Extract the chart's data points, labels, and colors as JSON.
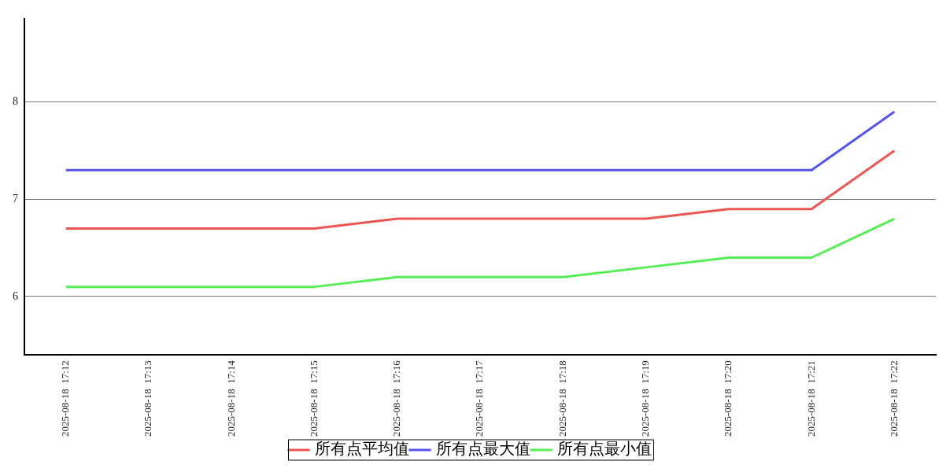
{
  "chart_data": {
    "type": "line",
    "categories": [
      "2025-08-18  17:12",
      "2025-08-18  17:13",
      "2025-08-18  17:14",
      "2025-08-18  17:15",
      "2025-08-18  17:16",
      "2025-08-18  17:17",
      "2025-08-18  17:18",
      "2025-08-18  17:19",
      "2025-08-18  17:20",
      "2025-08-18  17:21",
      "2025-08-18  17:22"
    ],
    "series": [
      {
        "name": "所有点平均值",
        "color": "#ee5555",
        "values": [
          6.7,
          6.7,
          6.7,
          6.7,
          6.8,
          6.8,
          6.8,
          6.8,
          6.9,
          6.9,
          7.5
        ]
      },
      {
        "name": "所有点最大值",
        "color": "#5555ee",
        "values": [
          7.3,
          7.3,
          7.3,
          7.3,
          7.3,
          7.3,
          7.3,
          7.3,
          7.3,
          7.3,
          7.9
        ]
      },
      {
        "name": "所有点最小值",
        "color": "#55ee55",
        "values": [
          6.1,
          6.1,
          6.1,
          6.1,
          6.2,
          6.2,
          6.2,
          6.3,
          6.4,
          6.4,
          6.8
        ]
      }
    ],
    "ylim": [
      5.4,
      8.85
    ],
    "yticks": [
      6,
      7,
      8
    ],
    "grid": "y",
    "legend": "bottom",
    "marker": "none",
    "line_style": "solid"
  }
}
